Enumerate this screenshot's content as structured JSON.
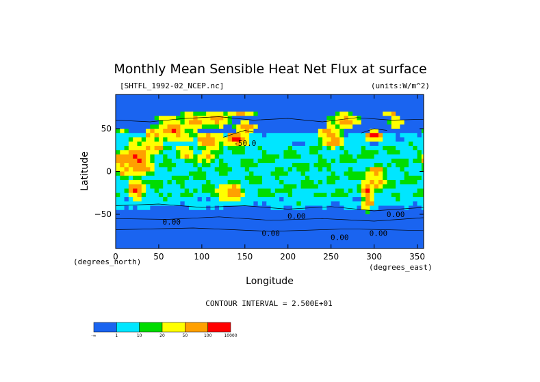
{
  "chart_data": {
    "type": "heatmap",
    "title": "Monthly Mean Sensible Heat Net Flux at surface",
    "file_label": "[SHTFL_1992-02_NCEP.nc]",
    "units_label": "(units:W/m^2)",
    "xlabel": "Longitude",
    "ylabel": "Latitude",
    "x_unit_note": "(degrees_east)",
    "y_unit_note": "(degrees_north)",
    "xlim": [
      0,
      357.5
    ],
    "ylim": [
      -90,
      90
    ],
    "x_ticks": [
      "0",
      "50",
      "100",
      "150",
      "200",
      "250",
      "300",
      "350"
    ],
    "y_ticks": [
      "50",
      "0",
      "−50"
    ],
    "x_tick_values": [
      0,
      50,
      100,
      150,
      200,
      250,
      300,
      350
    ],
    "y_tick_values": [
      50,
      0,
      -50
    ],
    "contour_interval_text": "CONTOUR INTERVAL = 2.500E+01",
    "contour_labels": [
      "-50.0",
      "0.00",
      "0.00",
      "0.00",
      "0.00",
      "0.00",
      "0.00"
    ],
    "colorbar": {
      "labels": [
        "-∞",
        "1",
        "10",
        "20",
        "50",
        "100",
        "10000"
      ],
      "colors": [
        "#1a64f0",
        "#00e6ff",
        "#00dc00",
        "#ffff00",
        "#ffa000",
        "#ff0000"
      ]
    }
  }
}
